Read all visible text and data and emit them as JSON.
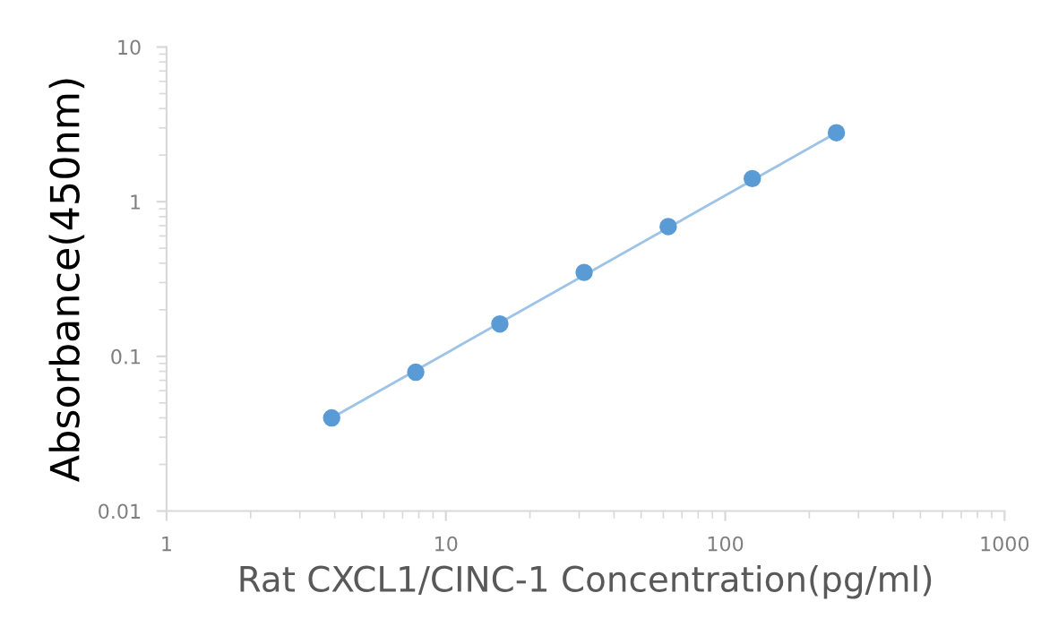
{
  "chart_data": {
    "type": "scatter",
    "xlabel": "Rat CXCL1/CINC-1 Concentration(pg/ml)",
    "ylabel": "Absorbance(450nm)",
    "log": "xy",
    "xlim": [
      1,
      1000
    ],
    "ylim": [
      0.01,
      10
    ],
    "xticks": [
      1,
      10,
      100,
      1000
    ],
    "yticks": [
      0.01,
      0.1,
      1,
      10
    ],
    "grid": false,
    "legend": false,
    "marker": "circle",
    "series": [
      {
        "type": "line",
        "color": "#9dc3e6",
        "x": [
          3.9,
          250
        ],
        "values": [
          0.04,
          2.79
        ],
        "marker": "none"
      },
      {
        "color": "#5b9bd5",
        "x": [
          3.9,
          7.8,
          15.6,
          31.25,
          62.5,
          125,
          250
        ],
        "values": [
          0.04,
          0.079,
          0.162,
          0.349,
          0.69,
          1.41,
          2.79
        ]
      }
    ]
  }
}
